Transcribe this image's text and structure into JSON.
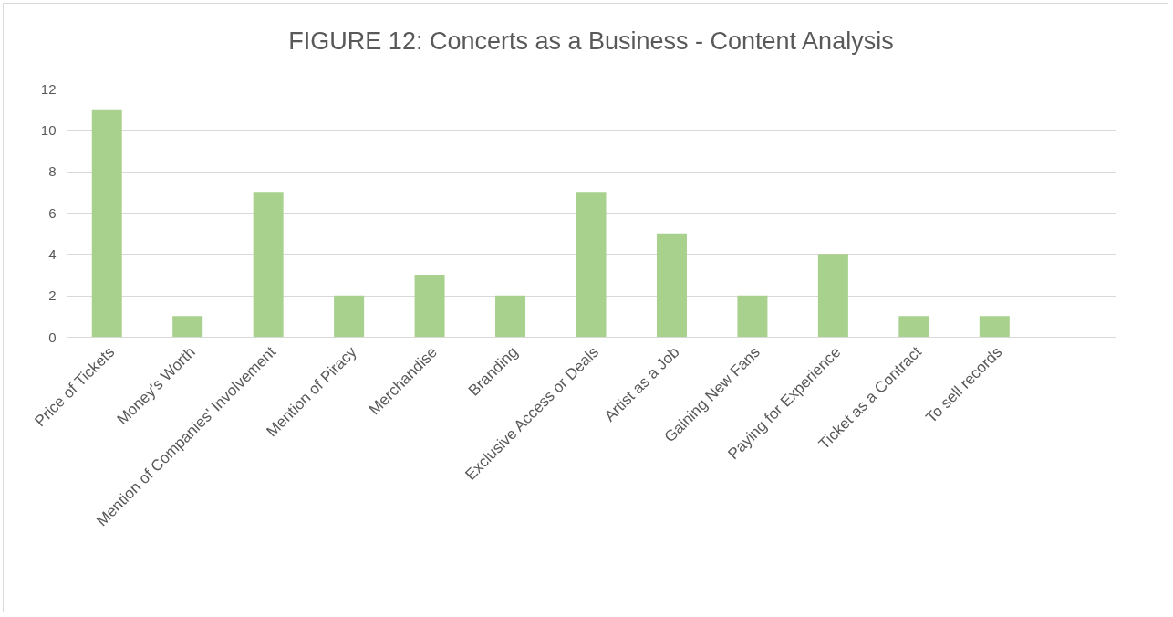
{
  "chart_data": {
    "type": "bar",
    "title": "FIGURE 12: Concerts as a Business - Content Analysis",
    "categories": [
      "Price of Tickets",
      "Money's Worth",
      "Mention of Companies' Involvement",
      "Mention of Piracy",
      "Merchandise",
      "Branding",
      "Exclusive Access or Deals",
      "Artist as a Job",
      "Gaining New Fans",
      "Paying for Experience",
      "Ticket as a Contract",
      "To sell records",
      null
    ],
    "values": [
      11,
      1,
      7,
      2,
      3,
      2,
      7,
      5,
      2,
      4,
      1,
      1,
      null
    ],
    "color": "#a9d18e",
    "ylim": [
      0,
      12
    ],
    "yticks": [
      0,
      2,
      4,
      6,
      8,
      10,
      12
    ],
    "grid": "y"
  }
}
